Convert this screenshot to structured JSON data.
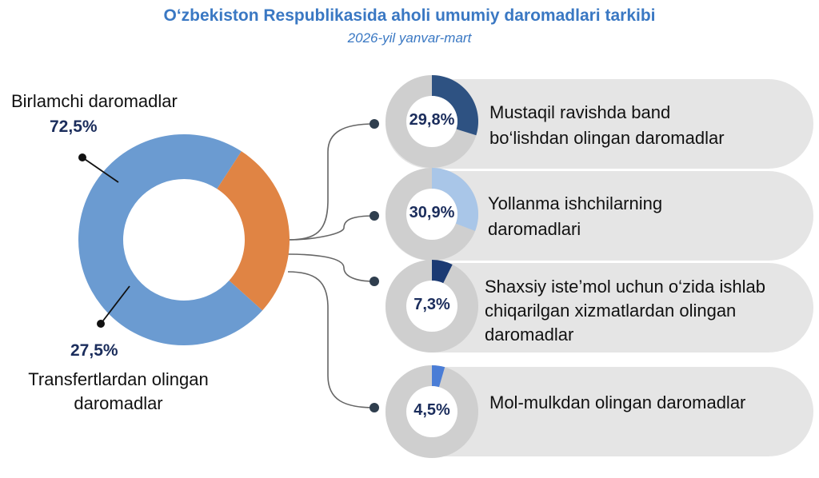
{
  "colors": {
    "title": "#3a78c3",
    "primary": "#6b9bd1",
    "transfers": "#e08444",
    "pill_bg": "#e5e5e5",
    "mini_track": "#cfcfcf",
    "value_text": "#1b2d5c",
    "connector": "#666666",
    "dot": "#2f3e4e"
  },
  "chart_data": [
    {
      "type": "pie",
      "title": "O‘zbekiston Respublikasida aholi umumiy daromadlari tarkibi",
      "subtitle": "2026-yil yanvar-mart",
      "categories": [
        "Birlamchi daromadlar",
        "Transfertlardan olingan daromadlar"
      ],
      "values": [
        72.5,
        27.5
      ],
      "value_labels": [
        "72,5%",
        "27,5%"
      ],
      "unit": "%",
      "style": "donut",
      "colors": [
        "#6b9bd1",
        "#e08444"
      ]
    },
    {
      "type": "pie",
      "style": "donut-breakdown",
      "parent": "Birlamchi daromadlar",
      "categories": [
        "Mustaqil ravishda band bo‘lishdan olingan daromadlar",
        "Yollanma ishchilarning daromadlari",
        "Shaxsiy iste’mol uchun o‘zida ishlab chiqarilgan xizmatlardan olingan daromadlar",
        "Mol-mulkdan olingan daromadlar"
      ],
      "values": [
        29.8,
        30.9,
        7.3,
        4.5
      ],
      "value_labels": [
        "29,8%",
        "30,9%",
        "7,3%",
        "4,5%"
      ],
      "unit": "%",
      "colors": [
        "#2e5282",
        "#a9c6e8",
        "#1b3a73",
        "#4a7dd6"
      ]
    }
  ],
  "labels": {
    "primary": "Birlamchi daromadlar",
    "transfers_line1": "Transfertlardan olingan",
    "transfers_line2": "daromadlar"
  },
  "pills": [
    {
      "line1": "Mustaqil ravishda band",
      "line2": "bo‘lishdan olingan daromadlar"
    },
    {
      "line1": "Yollanma ishchilarning",
      "line2": "daromadlari"
    },
    {
      "line1": "Shaxsiy iste’mol uchun o‘zida ishlab",
      "line2": "chiqarilgan xizmatlardan olingan",
      "line3": "daromadlar"
    },
    {
      "line1": "Mol-mulkdan olingan daromadlar"
    }
  ]
}
